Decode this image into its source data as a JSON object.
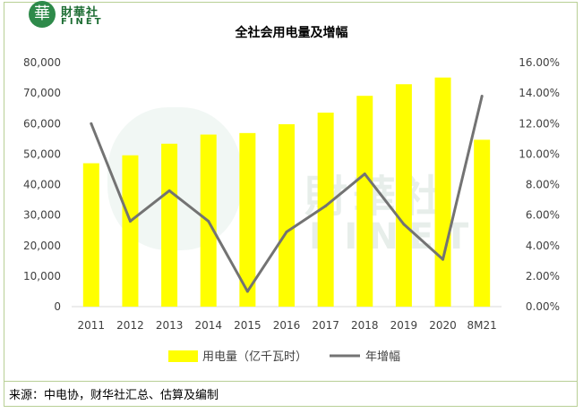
{
  "logo": {
    "cn": "財華社",
    "en": "FINET",
    "seal_char": "華"
  },
  "watermark": {
    "cn": "財華社",
    "en": "FINET"
  },
  "source_text": "来源：中电协，财华社汇总、估算及编制",
  "colors": {
    "bar": "#ffff00",
    "line": "#737373",
    "frame": "#b8cf95",
    "brand": "#2e8a4a"
  },
  "chart_data": {
    "type": "bar",
    "title": "全社会用电量及增幅",
    "categories": [
      "2011",
      "2012",
      "2013",
      "2014",
      "2015",
      "2016",
      "2017",
      "2018",
      "2019",
      "2020",
      "8M21"
    ],
    "series": [
      {
        "name": "用电量（亿千瓦时）",
        "type": "bar",
        "axis": "left",
        "values": [
          47000,
          49600,
          53400,
          56400,
          56900,
          59800,
          63600,
          69100,
          72900,
          75100,
          54700
        ]
      },
      {
        "name": "年增幅",
        "type": "line",
        "axis": "right",
        "values": [
          12.0,
          5.6,
          7.6,
          5.6,
          1.0,
          4.9,
          6.6,
          8.7,
          5.4,
          3.1,
          13.8
        ]
      }
    ],
    "y_left": {
      "ylim": [
        0,
        80000
      ],
      "ticks": [
        "0",
        "10,000",
        "20,000",
        "30,000",
        "40,000",
        "50,000",
        "60,000",
        "70,000",
        "80,000"
      ]
    },
    "y_right": {
      "ylim": [
        0,
        16
      ],
      "ticks": [
        "0.00%",
        "2.00%",
        "4.00%",
        "6.00%",
        "8.00%",
        "10.00%",
        "12.00%",
        "14.00%",
        "16.00%"
      ]
    },
    "legend_position": "bottom",
    "grid": false
  }
}
